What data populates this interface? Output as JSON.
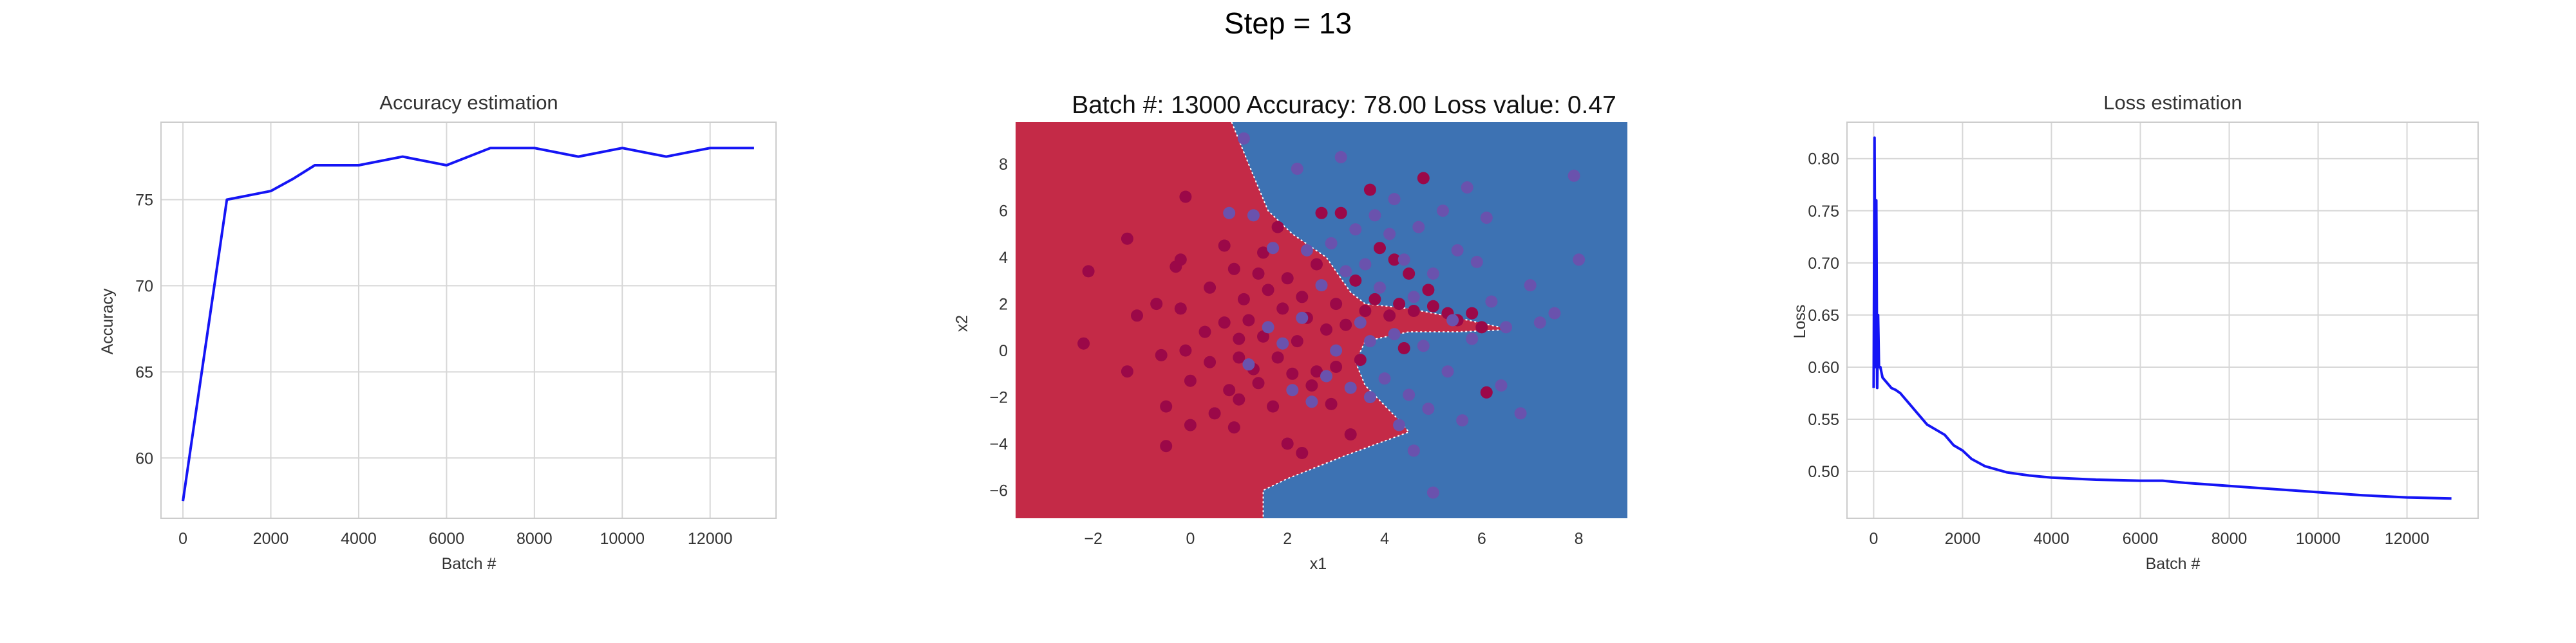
{
  "suptitle": "Step = 13",
  "chart_data": [
    {
      "type": "line",
      "title": "Accuracy estimation",
      "xlabel": "Batch #",
      "ylabel": "Accuracy",
      "xlim": [
        -500,
        13500
      ],
      "ylim": [
        56.5,
        79.5
      ],
      "xticks": [
        0,
        2000,
        4000,
        6000,
        8000,
        10000,
        12000
      ],
      "yticks": [
        60,
        65,
        70,
        75
      ],
      "grid": true,
      "color": "#1515f5",
      "x": [
        0,
        1000,
        2000,
        2500,
        3000,
        4000,
        5000,
        6000,
        7000,
        8000,
        9000,
        10000,
        11000,
        12000,
        13000
      ],
      "y": [
        57.5,
        75,
        75.5,
        76.2,
        77,
        77,
        77.5,
        77,
        78,
        78,
        77.5,
        78,
        77.5,
        78,
        78
      ]
    },
    {
      "type": "scatter",
      "title": "Batch #: 13000    Accuracy: 78.00    Loss value: 0.47",
      "xlabel": "x1",
      "ylabel": "x2",
      "xlim": [
        -3.6,
        9.0
      ],
      "ylim": [
        -7.2,
        9.8
      ],
      "xticks": [
        -2,
        0,
        2,
        4,
        6,
        8
      ],
      "yticks": [
        -6,
        -4,
        -2,
        0,
        2,
        4,
        6,
        8
      ],
      "grid": true,
      "region_colors": {
        "class0": "#c42a47",
        "class1": "#3d72b3"
      },
      "decision_boundary": [
        [
          0.85,
          9.8
        ],
        [
          1.2,
          8.0
        ],
        [
          1.6,
          6.0
        ],
        [
          2.1,
          5.0
        ],
        [
          2.8,
          4.0
        ],
        [
          3.3,
          2.5
        ],
        [
          3.6,
          2.0
        ],
        [
          4.5,
          1.8
        ],
        [
          5.5,
          1.4
        ],
        [
          6.6,
          0.9
        ],
        [
          5.5,
          0.8
        ],
        [
          4.5,
          0.8
        ],
        [
          3.6,
          0.4
        ],
        [
          3.4,
          -0.5
        ],
        [
          3.6,
          -1.5
        ],
        [
          4.3,
          -3.0
        ],
        [
          4.5,
          -3.5
        ],
        [
          3.2,
          -4.5
        ],
        [
          2.0,
          -5.5
        ],
        [
          1.5,
          -6.0
        ],
        [
          1.5,
          -7.2
        ]
      ],
      "series": [
        {
          "color": "#9b0848",
          "points": [
            [
              -2.2,
              0.3
            ],
            [
              -2.1,
              3.4
            ],
            [
              -1.3,
              4.8
            ],
            [
              -1.3,
              -0.9
            ],
            [
              -1.1,
              1.5
            ],
            [
              -0.7,
              2.0
            ],
            [
              -0.6,
              -0.2
            ],
            [
              -0.5,
              -2.4
            ],
            [
              -0.5,
              -4.1
            ],
            [
              -0.3,
              3.6
            ],
            [
              -0.2,
              3.9
            ],
            [
              -0.2,
              1.8
            ],
            [
              -0.1,
              0.0
            ],
            [
              -0.1,
              6.6
            ],
            [
              0.0,
              -1.3
            ],
            [
              0.0,
              -3.2
            ],
            [
              0.3,
              0.8
            ],
            [
              0.4,
              2.7
            ],
            [
              0.4,
              -0.5
            ],
            [
              0.5,
              -2.7
            ],
            [
              0.7,
              4.5
            ],
            [
              0.7,
              1.2
            ],
            [
              0.8,
              -1.7
            ],
            [
              0.9,
              3.5
            ],
            [
              0.9,
              -3.3
            ],
            [
              1.0,
              0.5
            ],
            [
              1.0,
              -2.1
            ],
            [
              1.0,
              -0.3
            ],
            [
              1.1,
              2.2
            ],
            [
              1.2,
              1.3
            ],
            [
              1.3,
              -0.8
            ],
            [
              1.4,
              3.3
            ],
            [
              1.4,
              -1.4
            ],
            [
              1.5,
              0.6
            ],
            [
              1.5,
              4.2
            ],
            [
              1.6,
              2.6
            ],
            [
              1.7,
              -2.4
            ],
            [
              1.8,
              -0.3
            ],
            [
              1.8,
              5.3
            ],
            [
              1.9,
              1.8
            ],
            [
              2.0,
              3.1
            ],
            [
              2.0,
              -4.0
            ],
            [
              2.1,
              -1.0
            ],
            [
              2.2,
              0.4
            ],
            [
              2.3,
              2.3
            ],
            [
              2.3,
              -4.4
            ],
            [
              2.4,
              1.4
            ],
            [
              2.5,
              -1.5
            ],
            [
              2.6,
              3.7
            ],
            [
              2.6,
              -0.9
            ],
            [
              2.7,
              5.9
            ],
            [
              2.8,
              0.9
            ],
            [
              2.9,
              -2.3
            ],
            [
              3.0,
              2.0
            ],
            [
              3.0,
              -0.7
            ],
            [
              3.1,
              5.9
            ],
            [
              3.2,
              1.1
            ],
            [
              3.3,
              -3.6
            ],
            [
              3.4,
              3.0
            ],
            [
              3.5,
              -0.4
            ],
            [
              3.6,
              1.7
            ],
            [
              3.7,
              6.9
            ],
            [
              3.8,
              2.2
            ],
            [
              3.9,
              4.4
            ],
            [
              4.1,
              1.5
            ],
            [
              4.2,
              3.9
            ],
            [
              4.3,
              2.0
            ],
            [
              4.4,
              0.1
            ],
            [
              4.5,
              3.3
            ],
            [
              4.6,
              1.7
            ],
            [
              4.8,
              7.4
            ],
            [
              4.9,
              2.6
            ],
            [
              5.0,
              1.9
            ],
            [
              5.3,
              1.6
            ],
            [
              5.5,
              1.3
            ],
            [
              5.8,
              1.6
            ],
            [
              6.0,
              1.0
            ],
            [
              6.1,
              -1.8
            ]
          ]
        },
        {
          "color": "#6a52ad",
          "points": [
            [
              1.2,
              -0.6
            ],
            [
              1.3,
              5.8
            ],
            [
              1.6,
              1.0
            ],
            [
              1.7,
              4.4
            ],
            [
              1.9,
              0.3
            ],
            [
              2.1,
              -1.7
            ],
            [
              2.3,
              1.4
            ],
            [
              2.4,
              4.3
            ],
            [
              2.5,
              -2.2
            ],
            [
              2.7,
              2.8
            ],
            [
              2.8,
              -1.1
            ],
            [
              2.9,
              4.6
            ],
            [
              3.0,
              0.0
            ],
            [
              3.2,
              3.4
            ],
            [
              3.3,
              -1.6
            ],
            [
              3.4,
              5.2
            ],
            [
              3.5,
              1.2
            ],
            [
              3.6,
              3.7
            ],
            [
              3.7,
              -2.0
            ],
            [
              3.7,
              0.4
            ],
            [
              3.8,
              5.8
            ],
            [
              3.9,
              2.7
            ],
            [
              4.0,
              -1.2
            ],
            [
              4.1,
              5.0
            ],
            [
              4.2,
              0.7
            ],
            [
              4.3,
              -3.2
            ],
            [
              4.4,
              3.9
            ],
            [
              4.5,
              -1.9
            ],
            [
              4.6,
              2.3
            ],
            [
              4.6,
              -4.3
            ],
            [
              4.7,
              5.3
            ],
            [
              4.8,
              0.2
            ],
            [
              4.9,
              -2.5
            ],
            [
              5.0,
              3.3
            ],
            [
              5.0,
              -6.1
            ],
            [
              5.2,
              6.0
            ],
            [
              5.3,
              -0.9
            ],
            [
              5.4,
              1.3
            ],
            [
              5.5,
              4.3
            ],
            [
              5.6,
              -3.0
            ],
            [
              5.8,
              0.5
            ],
            [
              5.9,
              3.8
            ],
            [
              6.1,
              5.7
            ],
            [
              6.2,
              2.1
            ],
            [
              6.4,
              -1.5
            ],
            [
              6.5,
              1.0
            ],
            [
              6.8,
              -2.7
            ],
            [
              7.0,
              2.8
            ],
            [
              7.2,
              1.2
            ],
            [
              7.5,
              1.6
            ],
            [
              7.9,
              7.5
            ],
            [
              8.0,
              3.9
            ],
            [
              0.8,
              5.9
            ],
            [
              1.1,
              9.1
            ],
            [
              2.2,
              7.8
            ],
            [
              3.1,
              8.3
            ],
            [
              4.2,
              6.5
            ],
            [
              5.7,
              7.0
            ]
          ]
        }
      ]
    },
    {
      "type": "line",
      "title": "Loss estimation",
      "xlabel": "Batch #",
      "ylabel": "Loss",
      "xlim": [
        -600,
        13600
      ],
      "ylim": [
        0.455,
        0.835
      ],
      "xticks": [
        0,
        2000,
        4000,
        6000,
        8000,
        10000,
        12000
      ],
      "yticks": [
        0.5,
        0.55,
        0.6,
        0.65,
        0.7,
        0.75,
        0.8
      ],
      "grid": true,
      "color": "#1515f5",
      "x": [
        0,
        20,
        40,
        60,
        80,
        100,
        120,
        150,
        200,
        300,
        400,
        500,
        600,
        800,
        1000,
        1200,
        1400,
        1600,
        1700,
        1800,
        2000,
        2200,
        2500,
        3000,
        3500,
        4000,
        5000,
        6000,
        6500,
        7000,
        8000,
        9000,
        10000,
        11000,
        12000,
        13000
      ],
      "y": [
        0.58,
        0.82,
        0.6,
        0.76,
        0.58,
        0.65,
        0.6,
        0.6,
        0.59,
        0.585,
        0.58,
        0.578,
        0.575,
        0.565,
        0.555,
        0.545,
        0.54,
        0.535,
        0.53,
        0.525,
        0.52,
        0.512,
        0.505,
        0.499,
        0.496,
        0.494,
        0.492,
        0.491,
        0.491,
        0.489,
        0.486,
        0.483,
        0.48,
        0.477,
        0.475,
        0.474
      ]
    }
  ]
}
